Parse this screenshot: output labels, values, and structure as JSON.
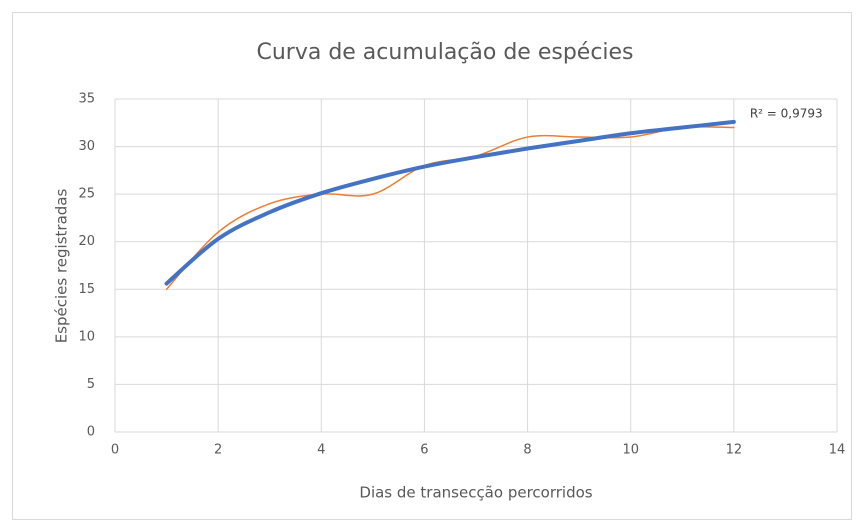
{
  "chart_data": {
    "type": "line",
    "title": "Curva de acumulação de espécies",
    "x_label": "Dias de transecção percorridos",
    "y_label": "Espécies registradas",
    "x": [
      1,
      2,
      3,
      4,
      5,
      6,
      7,
      8,
      9,
      10,
      11,
      12
    ],
    "series": [
      {
        "color": "#ed7d31",
        "values": [
          15,
          21,
          24,
          25,
          25,
          28,
          29,
          31,
          31,
          31,
          32,
          32
        ]
      }
    ],
    "trendline": {
      "type": "logarithmic",
      "color": "#4472c4",
      "label": "R² = 0,9793",
      "values": [
        15.6,
        20.3,
        23.1,
        25.1,
        26.6,
        27.9,
        28.9,
        29.8,
        30.6,
        31.4,
        32.0,
        32.6
      ]
    },
    "xlim": [
      0,
      14
    ],
    "xticks": [
      0,
      2,
      4,
      6,
      8,
      10,
      12,
      14
    ],
    "ylim": [
      0,
      35
    ],
    "yticks": [
      0,
      5,
      10,
      15,
      20,
      25,
      30,
      35
    ],
    "grid": true,
    "smooth": true
  }
}
